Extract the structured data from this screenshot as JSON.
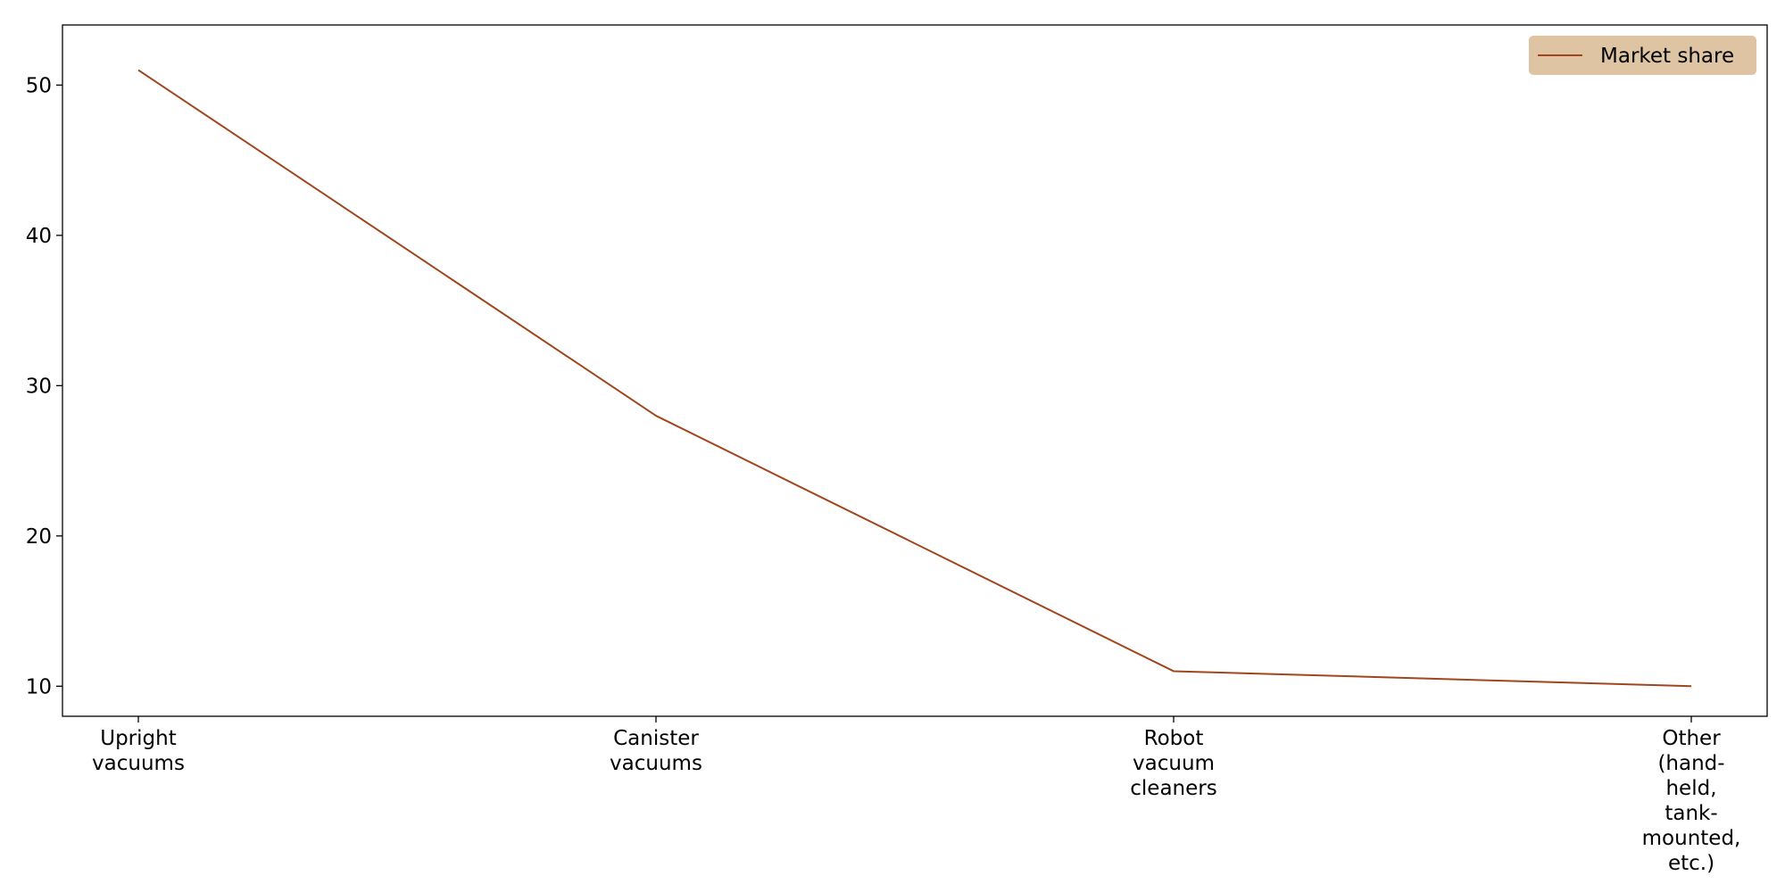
{
  "chart_data": {
    "type": "line",
    "categories": [
      "Upright\nvacuums",
      "Canister\nvacuums",
      "Robot\nvacuum\ncleaners",
      "Other\n(hand-\nheld,\ntank-\nmounted,\netc.)"
    ],
    "series": [
      {
        "name": "Market share",
        "values": [
          51,
          28,
          11,
          10
        ]
      }
    ],
    "yticks": [
      10,
      20,
      30,
      40,
      50
    ],
    "ylim": [
      8,
      54
    ],
    "title": "",
    "xlabel": "",
    "ylabel": "",
    "grid": false,
    "legend_position": "top-right",
    "colors": {
      "line": "#A0461E",
      "legend_background": "#DEC4A3",
      "axis": "#000000"
    }
  }
}
